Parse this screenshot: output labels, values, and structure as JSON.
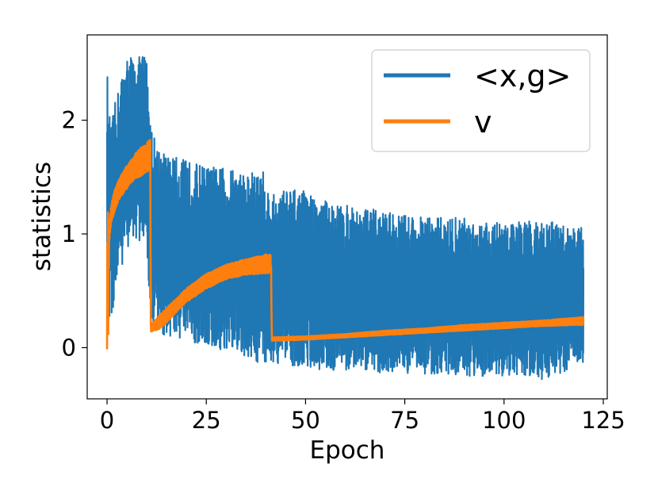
{
  "chart_data": {
    "type": "line",
    "title": "",
    "xlabel": "Epoch",
    "ylabel": "statistics",
    "xlim": [
      -5,
      126
    ],
    "ylim": [
      -0.45,
      2.75
    ],
    "x_ticks": [
      0,
      25,
      50,
      75,
      100,
      125
    ],
    "y_ticks": [
      0,
      1,
      2
    ],
    "grid": false,
    "legend": "top-right",
    "series": [
      {
        "name": "<x,g>",
        "color": "#1f77b4",
        "x": [
          0,
          0.3,
          0.6,
          1,
          2,
          3,
          4,
          5,
          6,
          7,
          8,
          9,
          10,
          10.8,
          11,
          12,
          15,
          20,
          25,
          30,
          35,
          40,
          41,
          42,
          45,
          50,
          55,
          60,
          70,
          80,
          90,
          100,
          110,
          120
        ],
        "upper": [
          2.6,
          2.0,
          2.05,
          1.95,
          2.15,
          2.3,
          2.45,
          2.55,
          2.6,
          2.5,
          2.55,
          2.62,
          2.55,
          2.2,
          2.0,
          1.85,
          1.7,
          1.65,
          1.6,
          1.58,
          1.55,
          1.55,
          1.3,
          1.35,
          1.4,
          1.38,
          1.3,
          1.25,
          1.2,
          1.15,
          1.15,
          1.1,
          1.12,
          1.05
        ],
        "lower": [
          0.2,
          0.25,
          0.15,
          0.25,
          0.4,
          0.6,
          0.75,
          0.85,
          0.95,
          0.95,
          0.9,
          0.92,
          0.95,
          0.25,
          0.2,
          0.15,
          0.1,
          0.05,
          0.0,
          -0.05,
          -0.1,
          -0.15,
          -0.1,
          -0.15,
          -0.15,
          -0.17,
          -0.2,
          -0.2,
          -0.22,
          -0.23,
          -0.25,
          -0.25,
          -0.28,
          -0.15
        ]
      },
      {
        "name": "v",
        "color": "#ff7f0e",
        "x": [
          0,
          0.15,
          0.3,
          0.5,
          1,
          2,
          3,
          4,
          5,
          6,
          7,
          8,
          9,
          10,
          10.9,
          11,
          13,
          15,
          20,
          25,
          30,
          35,
          40,
          41.3,
          41.5,
          50,
          60,
          70,
          80,
          90,
          100,
          110,
          120
        ],
        "upper": [
          0.05,
          1.85,
          0.7,
          1.05,
          1.25,
          1.4,
          1.48,
          1.55,
          1.6,
          1.65,
          1.7,
          1.75,
          1.78,
          1.8,
          1.85,
          0.2,
          0.28,
          0.35,
          0.52,
          0.65,
          0.73,
          0.78,
          0.82,
          0.82,
          0.09,
          0.1,
          0.12,
          0.15,
          0.17,
          0.2,
          0.22,
          0.24,
          0.27
        ],
        "lower": [
          -0.02,
          0.0,
          0.1,
          0.9,
          1.1,
          1.2,
          1.3,
          1.35,
          1.4,
          1.45,
          1.48,
          1.5,
          1.52,
          1.55,
          1.55,
          0.14,
          0.16,
          0.22,
          0.4,
          0.52,
          0.6,
          0.64,
          0.65,
          0.65,
          0.06,
          0.07,
          0.09,
          0.11,
          0.13,
          0.15,
          0.17,
          0.19,
          0.2
        ]
      }
    ]
  }
}
